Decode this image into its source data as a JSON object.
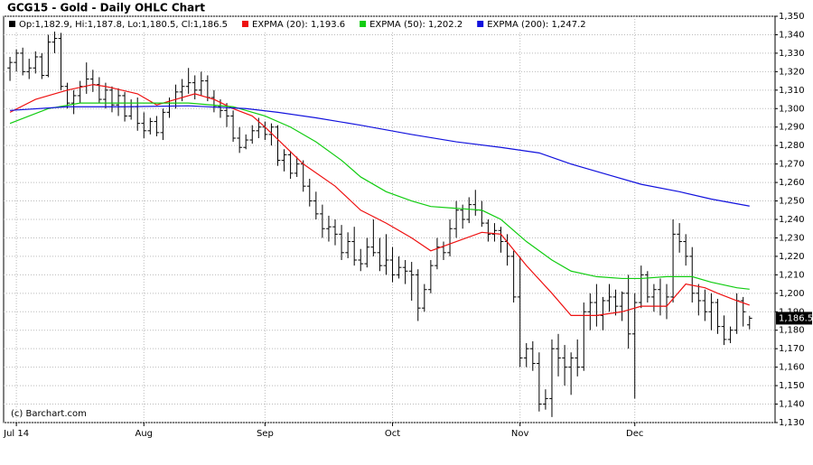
{
  "chart_data": {
    "type": "ohlc",
    "title": "GCG15 - Gold - Daily OHLC Chart",
    "ohlc_label": "Op:1,182.9, Hi:1,187.8, Lo:1,180.5, Cl:1,186.5",
    "last_label": "1,186.5",
    "credit": "(c) Barchart.com",
    "color": "#000000",
    "bars": [
      [
        1322,
        1328,
        1315,
        1325
      ],
      [
        1325,
        1332,
        1320,
        1330
      ],
      [
        1330,
        1333,
        1318,
        1320
      ],
      [
        1320,
        1327,
        1316,
        1322
      ],
      [
        1322,
        1331,
        1319,
        1328
      ],
      [
        1328,
        1330,
        1316,
        1318
      ],
      [
        1318,
        1340,
        1317,
        1336
      ],
      [
        1336,
        1342,
        1330,
        1338
      ],
      [
        1338,
        1341,
        1310,
        1312
      ],
      [
        1312,
        1314,
        1300,
        1303
      ],
      [
        1303,
        1310,
        1297,
        1307
      ],
      [
        1307,
        1315,
        1303,
        1312
      ],
      [
        1312,
        1325,
        1308,
        1316
      ],
      [
        1316,
        1321,
        1309,
        1313
      ],
      [
        1313,
        1317,
        1303,
        1305
      ],
      [
        1305,
        1314,
        1300,
        1310
      ],
      [
        1310,
        1312,
        1298,
        1302
      ],
      [
        1302,
        1311,
        1296,
        1307
      ],
      [
        1307,
        1309,
        1293,
        1296
      ],
      [
        1296,
        1305,
        1294,
        1301
      ],
      [
        1301,
        1306,
        1288,
        1292
      ],
      [
        1292,
        1298,
        1284,
        1288
      ],
      [
        1288,
        1295,
        1286,
        1293
      ],
      [
        1293,
        1296,
        1285,
        1287
      ],
      [
        1287,
        1300,
        1283,
        1298
      ],
      [
        1298,
        1306,
        1295,
        1303
      ],
      [
        1303,
        1313,
        1300,
        1309
      ],
      [
        1309,
        1316,
        1304,
        1312
      ],
      [
        1312,
        1322,
        1308,
        1314
      ],
      [
        1314,
        1318,
        1305,
        1310
      ],
      [
        1310,
        1320,
        1307,
        1315
      ],
      [
        1315,
        1318,
        1304,
        1306
      ],
      [
        1306,
        1310,
        1298,
        1301
      ],
      [
        1301,
        1305,
        1295,
        1299
      ],
      [
        1299,
        1303,
        1290,
        1296
      ],
      [
        1296,
        1299,
        1282,
        1284
      ],
      [
        1284,
        1290,
        1276,
        1279
      ],
      [
        1279,
        1286,
        1278,
        1283
      ],
      [
        1283,
        1291,
        1281,
        1288
      ],
      [
        1288,
        1295,
        1284,
        1290
      ],
      [
        1290,
        1293,
        1283,
        1286
      ],
      [
        1286,
        1292,
        1280,
        1290
      ],
      [
        1290,
        1291,
        1269,
        1272
      ],
      [
        1272,
        1278,
        1266,
        1275
      ],
      [
        1275,
        1277,
        1262,
        1265
      ],
      [
        1265,
        1274,
        1263,
        1270
      ],
      [
        1270,
        1272,
        1255,
        1258
      ],
      [
        1258,
        1262,
        1247,
        1250
      ],
      [
        1250,
        1255,
        1240,
        1243
      ],
      [
        1243,
        1248,
        1230,
        1235
      ],
      [
        1235,
        1242,
        1228,
        1236
      ],
      [
        1236,
        1240,
        1226,
        1232
      ],
      [
        1232,
        1237,
        1218,
        1222
      ],
      [
        1222,
        1233,
        1219,
        1228
      ],
      [
        1228,
        1236,
        1215,
        1218
      ],
      [
        1218,
        1224,
        1212,
        1216
      ],
      [
        1216,
        1230,
        1214,
        1225
      ],
      [
        1225,
        1240,
        1220,
        1222
      ],
      [
        1222,
        1230,
        1212,
        1215
      ],
      [
        1215,
        1232,
        1210,
        1218
      ],
      [
        1218,
        1225,
        1206,
        1210
      ],
      [
        1210,
        1220,
        1208,
        1214
      ],
      [
        1214,
        1218,
        1205,
        1212
      ],
      [
        1212,
        1217,
        1196,
        1210
      ],
      [
        1210,
        1213,
        1185,
        1192
      ],
      [
        1192,
        1205,
        1190,
        1202
      ],
      [
        1202,
        1218,
        1200,
        1215
      ],
      [
        1215,
        1230,
        1213,
        1225
      ],
      [
        1225,
        1228,
        1218,
        1222
      ],
      [
        1222,
        1240,
        1220,
        1235
      ],
      [
        1235,
        1250,
        1230,
        1245
      ],
      [
        1245,
        1248,
        1235,
        1240
      ],
      [
        1240,
        1252,
        1238,
        1248
      ],
      [
        1248,
        1256,
        1242,
        1245
      ],
      [
        1245,
        1250,
        1236,
        1238
      ],
      [
        1238,
        1240,
        1228,
        1232
      ],
      [
        1232,
        1238,
        1228,
        1234
      ],
      [
        1234,
        1236,
        1222,
        1228
      ],
      [
        1228,
        1232,
        1215,
        1220
      ],
      [
        1220,
        1223,
        1195,
        1198
      ],
      [
        1198,
        1220,
        1160,
        1165
      ],
      [
        1165,
        1173,
        1160,
        1170
      ],
      [
        1170,
        1174,
        1158,
        1162
      ],
      [
        1162,
        1168,
        1136,
        1140
      ],
      [
        1140,
        1148,
        1137,
        1143
      ],
      [
        1143,
        1175,
        1133,
        1170
      ],
      [
        1170,
        1178,
        1155,
        1165
      ],
      [
        1165,
        1172,
        1150,
        1160
      ],
      [
        1160,
        1168,
        1145,
        1165
      ],
      [
        1165,
        1175,
        1155,
        1160
      ],
      [
        1160,
        1195,
        1158,
        1190
      ],
      [
        1190,
        1200,
        1180,
        1195
      ],
      [
        1195,
        1205,
        1182,
        1188
      ],
      [
        1188,
        1198,
        1180,
        1196
      ],
      [
        1196,
        1205,
        1190,
        1198
      ],
      [
        1198,
        1202,
        1188,
        1193
      ],
      [
        1193,
        1201,
        1185,
        1200
      ],
      [
        1200,
        1210,
        1170,
        1178
      ],
      [
        1178,
        1200,
        1143,
        1195
      ],
      [
        1195,
        1215,
        1192,
        1210
      ],
      [
        1210,
        1212,
        1195,
        1198
      ],
      [
        1198,
        1205,
        1190,
        1202
      ],
      [
        1202,
        1208,
        1188,
        1193
      ],
      [
        1193,
        1205,
        1186,
        1198
      ],
      [
        1198,
        1240,
        1195,
        1232
      ],
      [
        1232,
        1238,
        1222,
        1228
      ],
      [
        1228,
        1232,
        1215,
        1220
      ],
      [
        1220,
        1225,
        1195,
        1200
      ],
      [
        1200,
        1205,
        1188,
        1196
      ],
      [
        1196,
        1202,
        1185,
        1190
      ],
      [
        1190,
        1200,
        1180,
        1195
      ],
      [
        1195,
        1197,
        1178,
        1182
      ],
      [
        1182,
        1188,
        1172,
        1175
      ],
      [
        1175,
        1182,
        1173,
        1180
      ],
      [
        1180,
        1200,
        1178,
        1196
      ],
      [
        1196,
        1198,
        1182,
        1190
      ],
      [
        1182.9,
        1187.8,
        1180.5,
        1186.5
      ]
    ],
    "series": [
      {
        "name": "EXPMA (20): 1,193.6",
        "color": "#ee1111",
        "x": [
          0,
          4,
          9,
          13,
          15,
          20,
          23,
          26,
          29,
          32,
          35,
          38,
          40,
          43,
          46,
          51,
          55,
          59,
          63,
          66,
          70,
          74,
          77,
          81,
          85,
          88,
          92,
          96,
          99,
          103,
          106,
          109,
          111,
          114,
          116
        ],
        "values": [
          1298,
          1305,
          1310,
          1313,
          1312,
          1308,
          1302,
          1305,
          1308,
          1305,
          1300,
          1296,
          1290,
          1280,
          1270,
          1258,
          1245,
          1238,
          1230,
          1223,
          1228,
          1233,
          1232,
          1215,
          1200,
          1188,
          1188,
          1190,
          1193,
          1193,
          1205,
          1203,
          1200,
          1196,
          1193.6
        ]
      },
      {
        "name": "EXPMA (50): 1,202.2",
        "color": "#11cc11",
        "x": [
          0,
          6,
          11,
          18,
          28,
          35,
          40,
          44,
          48,
          52,
          55,
          59,
          63,
          66,
          70,
          74,
          77,
          81,
          85,
          88,
          92,
          96,
          99,
          103,
          107,
          110,
          114,
          116
        ],
        "values": [
          1292,
          1300,
          1303,
          1303,
          1303,
          1301,
          1296,
          1290,
          1282,
          1272,
          1263,
          1255,
          1250,
          1247,
          1246,
          1245,
          1240,
          1228,
          1218,
          1212,
          1209,
          1208,
          1208,
          1209,
          1209,
          1206,
          1203,
          1202.2
        ]
      },
      {
        "name": "EXPMA (200): 1,247.2",
        "color": "#1111dd",
        "x": [
          0,
          9,
          18,
          28,
          37,
          42,
          48,
          55,
          63,
          70,
          77,
          83,
          88,
          94,
          99,
          105,
          110,
          116
        ],
        "values": [
          1299,
          1301,
          1301,
          1301.5,
          1300,
          1298,
          1295,
          1291,
          1286,
          1282,
          1279,
          1276,
          1270,
          1264,
          1259,
          1255,
          1251,
          1247.2
        ]
      }
    ],
    "xlim": [
      -1,
      120
    ],
    "xticks": [
      {
        "value": 1,
        "label": "Jul 14"
      },
      {
        "value": 21,
        "label": "Aug"
      },
      {
        "value": 40,
        "label": "Sep"
      },
      {
        "value": 60,
        "label": "Oct"
      },
      {
        "value": 80,
        "label": "Nov"
      },
      {
        "value": 98,
        "label": "Dec"
      }
    ],
    "ylim": [
      1130,
      1350
    ],
    "yticks": [
      {
        "value": 1130,
        "label": "1,130"
      },
      {
        "value": 1140,
        "label": "1,140"
      },
      {
        "value": 1150,
        "label": "1,150"
      },
      {
        "value": 1160,
        "label": "1,160"
      },
      {
        "value": 1170,
        "label": "1,170"
      },
      {
        "value": 1180,
        "label": "1,180"
      },
      {
        "value": 1190,
        "label": "1,190"
      },
      {
        "value": 1200,
        "label": "1,200"
      },
      {
        "value": 1210,
        "label": "1,210"
      },
      {
        "value": 1220,
        "label": "1,220"
      },
      {
        "value": 1230,
        "label": "1,230"
      },
      {
        "value": 1240,
        "label": "1,240"
      },
      {
        "value": 1250,
        "label": "1,250"
      },
      {
        "value": 1260,
        "label": "1,260"
      },
      {
        "value": 1270,
        "label": "1,270"
      },
      {
        "value": 1280,
        "label": "1,280"
      },
      {
        "value": 1290,
        "label": "1,290"
      },
      {
        "value": 1300,
        "label": "1,300"
      },
      {
        "value": 1310,
        "label": "1,310"
      },
      {
        "value": 1320,
        "label": "1,320"
      },
      {
        "value": 1330,
        "label": "1,330"
      },
      {
        "value": 1340,
        "label": "1,340"
      },
      {
        "value": 1350,
        "label": "1,350"
      }
    ],
    "grid": true
  }
}
